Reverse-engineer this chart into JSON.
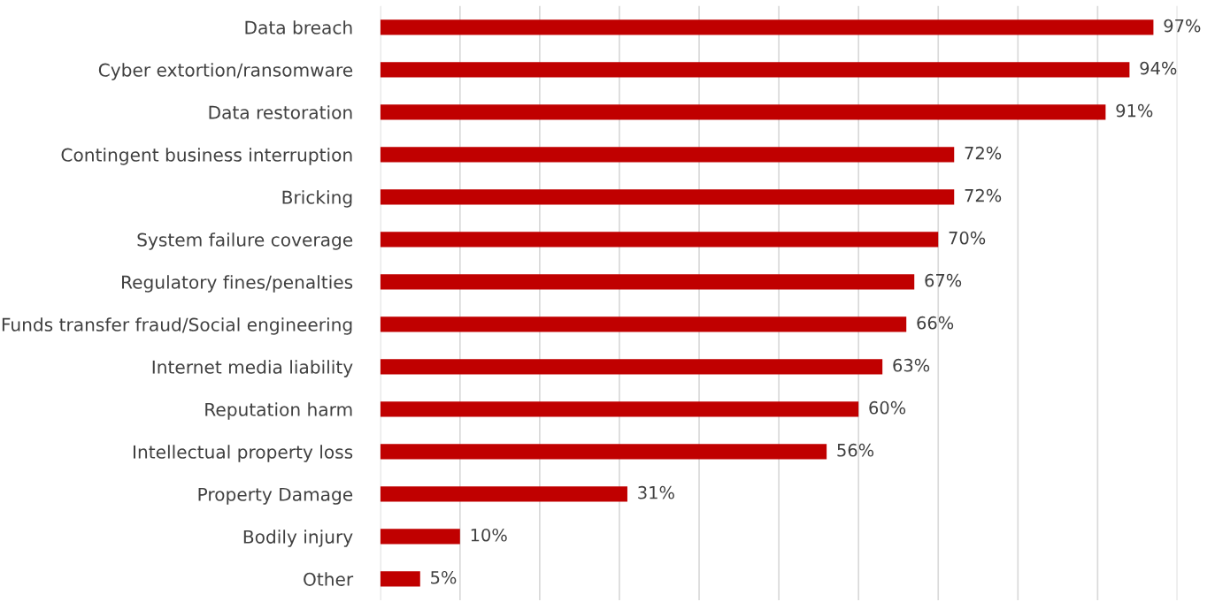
{
  "chart_data": {
    "type": "bar",
    "orientation": "horizontal",
    "color": "#c00000",
    "categories": [
      "Data breach",
      "Cyber extortion/ransomware",
      "Data restoration",
      "Contingent business interruption",
      "Bricking",
      "System failure coverage",
      "Regulatory fines/penalties",
      "Funds transfer fraud/Social engineering",
      "Internet media liability",
      "Reputation harm",
      "Intellectual property loss",
      "Property Damage",
      "Bodily injury",
      "Other"
    ],
    "values": [
      97,
      94,
      91,
      72,
      72,
      70,
      67,
      66,
      63,
      60,
      56,
      31,
      10,
      5
    ],
    "value_labels": [
      "97%",
      "94%",
      "91%",
      "72%",
      "72%",
      "70%",
      "67%",
      "66%",
      "63%",
      "60%",
      "56%",
      "31%",
      "10%",
      "5%"
    ],
    "xlim": [
      0,
      100
    ],
    "xticks": [
      {
        "value": 0,
        "label": null
      },
      {
        "value": 10,
        "label": null
      },
      {
        "value": 20,
        "label": null
      },
      {
        "value": 30,
        "label": null
      },
      {
        "value": 40,
        "label": null
      },
      {
        "value": 50,
        "label": null
      },
      {
        "value": 60,
        "label": null
      },
      {
        "value": 70,
        "label": null
      },
      {
        "value": 80,
        "label": null
      },
      {
        "value": 90,
        "label": null
      },
      {
        "value": 100,
        "label": null
      }
    ],
    "grid": "x",
    "tick_labels": "y"
  }
}
